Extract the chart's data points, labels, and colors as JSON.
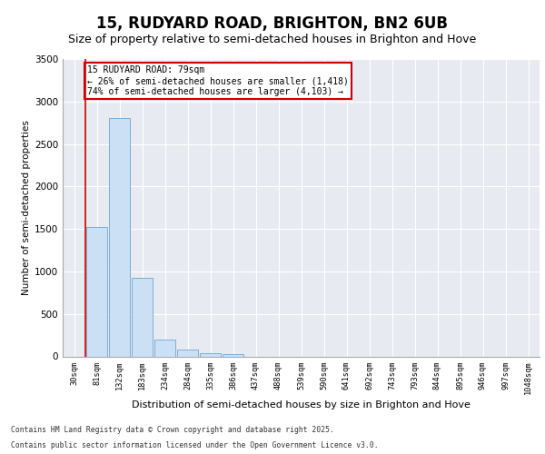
{
  "title": "15, RUDYARD ROAD, BRIGHTON, BN2 6UB",
  "subtitle": "Size of property relative to semi-detached houses in Brighton and Hove",
  "xlabel": "Distribution of semi-detached houses by size in Brighton and Hove",
  "ylabel": "Number of semi-detached properties",
  "categories": [
    "30sqm",
    "81sqm",
    "132sqm",
    "183sqm",
    "234sqm",
    "284sqm",
    "335sqm",
    "386sqm",
    "437sqm",
    "488sqm",
    "539sqm",
    "590sqm",
    "641sqm",
    "692sqm",
    "743sqm",
    "793sqm",
    "844sqm",
    "895sqm",
    "946sqm",
    "997sqm",
    "1048sqm"
  ],
  "values": [
    0,
    1520,
    2800,
    920,
    200,
    80,
    40,
    30,
    0,
    0,
    0,
    0,
    0,
    0,
    0,
    0,
    0,
    0,
    0,
    0,
    0
  ],
  "bar_color": "#cce0f5",
  "bar_edgecolor": "#7aafd4",
  "ylim": [
    0,
    3500
  ],
  "property_line_x": 0.5,
  "property_sqm": 79,
  "pct_smaller": 26,
  "count_smaller": "1,418",
  "pct_larger": 74,
  "count_larger": "4,103",
  "annotation_text_line1": "15 RUDYARD ROAD: 79sqm",
  "annotation_text_line2": "← 26% of semi-detached houses are smaller (1,418)",
  "annotation_text_line3": "74% of semi-detached houses are larger (4,103) →",
  "red_line_color": "#cc0000",
  "plot_background": "#e8eaf2",
  "footer_line1": "Contains HM Land Registry data © Crown copyright and database right 2025.",
  "footer_line2": "Contains public sector information licensed under the Open Government Licence v3.0.",
  "title_fontsize": 12,
  "subtitle_fontsize": 9,
  "yticks": [
    0,
    500,
    1000,
    1500,
    2000,
    2500,
    3000,
    3500
  ]
}
